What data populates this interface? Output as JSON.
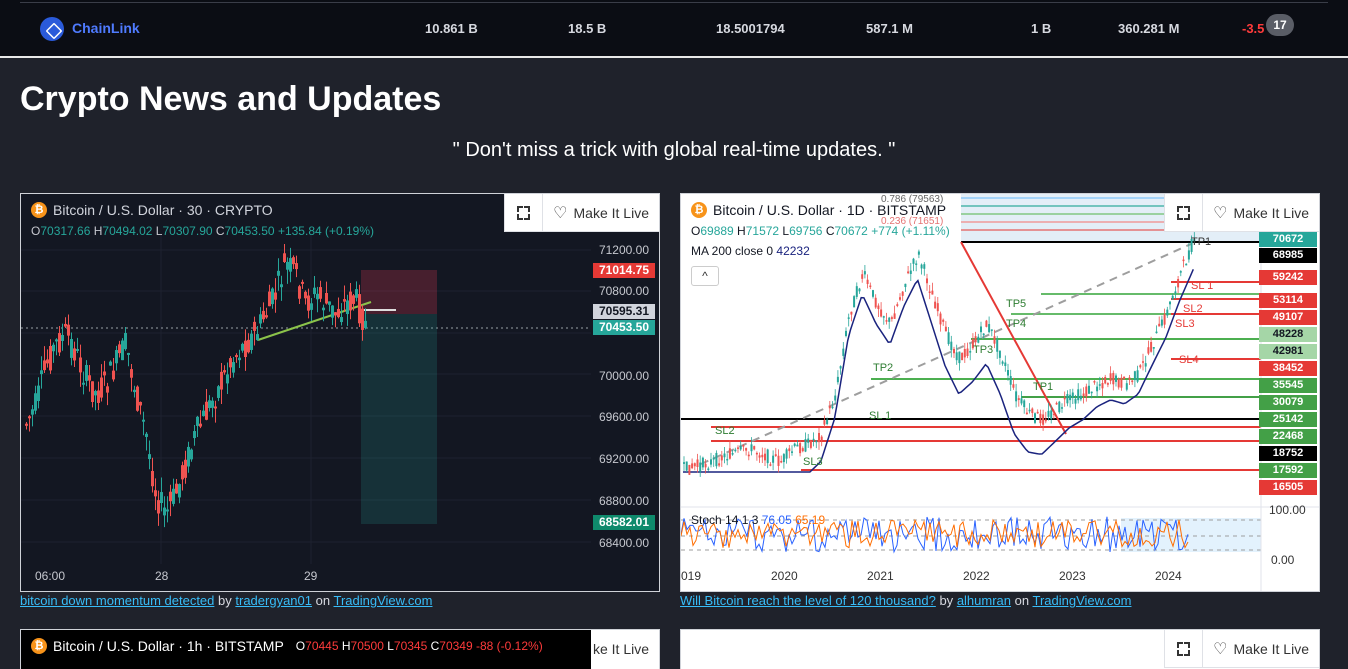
{
  "ticker": {
    "coin": "ChainLink",
    "values": [
      "10.861 B",
      "18.5 B",
      "18.5001794",
      "587.1 M",
      "1 B",
      "360.281 M"
    ],
    "change": "-3.5",
    "badge": "17"
  },
  "page": {
    "title": "Crypto News and Updates",
    "subtitle": "\" Don't miss a trick with global real-time updates. \""
  },
  "widget1": {
    "title": "Bitcoin / U.S. Dollar · 30 · CRYPTO",
    "ohlc": {
      "o": "70317.66",
      "h": "70494.02",
      "l": "70307.90",
      "c": "70453.50",
      "chg": "+135.84 (+0.19%)"
    },
    "make_live": "Make It Live",
    "y_ticks": [
      "71200.00",
      "70800.00",
      "70000.00",
      "69600.00",
      "69200.00",
      "68800.00",
      "68400.00"
    ],
    "x_ticks": [
      "06:00",
      "28",
      "29"
    ],
    "tags": {
      "stop": "71014.75",
      "entry": "70595.31",
      "last": "70453.50",
      "target": "68582.01",
      "partial": "704"
    },
    "caption": {
      "link": "bitcoin down momentum detected",
      "by": "by",
      "author": "tradergyan01",
      "on": "on",
      "site": "TradingView.com"
    }
  },
  "widget2": {
    "title": "Bitcoin / U.S. Dollar · 1D · BITSTAMP",
    "ohlc": {
      "o": "69889",
      "h": "71572",
      "l": "69756",
      "c": "70672",
      "chg": "+774 (+1.11%)"
    },
    "ma": "MA 200 close 0",
    "ma_val": "42232",
    "make_live": "Make It Live",
    "fib_top": "0.786 (79563)",
    "fib_2": "0.236 (71651)",
    "right_labels": [
      "70672",
      "68985",
      "59242",
      "53114",
      "49107",
      "48228",
      "42981",
      "38452",
      "35545",
      "30079",
      "25142",
      "22468",
      "18752",
      "17592",
      "16505"
    ],
    "chart_labels": [
      "TP5",
      "TP4",
      "TP3",
      "TP2",
      "TP1",
      "SL 1",
      "SL2",
      "SL3",
      "SL4",
      "SL 1",
      "SL2",
      "SL3",
      "TP1"
    ],
    "stoch": {
      "label": "Stoch",
      "params": "14 1 3",
      "k": "76.05",
      "d": "65.19",
      "hi": "100.00",
      "lo": "0.00"
    },
    "x_ticks": [
      "019",
      "2020",
      "2021",
      "2022",
      "2023",
      "2024"
    ],
    "caption": {
      "link": "Will Bitcoin reach the level of 120 thousand?",
      "by": "by",
      "author": "alhumran",
      "on": "on",
      "site": "TradingView.com"
    }
  },
  "widget3": {
    "title": "Bitcoin / U.S. Dollar · 1h · BITSTAMP",
    "ohlc": {
      "o": "70445",
      "h": "70500",
      "l": "70345",
      "c": "70349",
      "chg": "-88 (-0.12%)"
    },
    "make_live": "ke It Live"
  },
  "widget4": {
    "make_live": "Make It Live"
  },
  "colors": {
    "up": "#26a69a",
    "down": "#ef5350",
    "accent": "#38bdf8"
  }
}
